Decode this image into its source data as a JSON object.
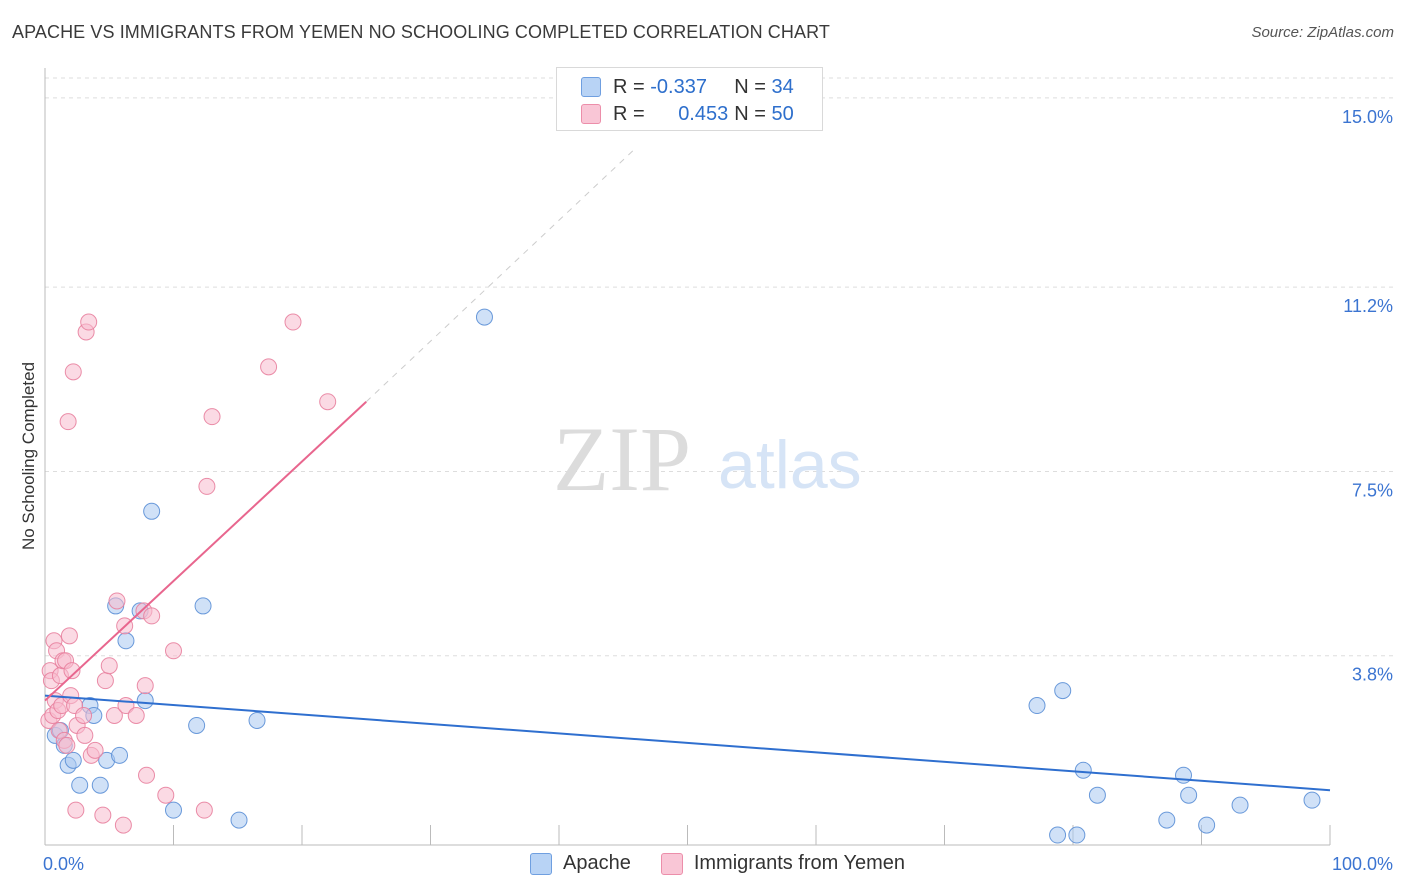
{
  "title": "APACHE VS IMMIGRANTS FROM YEMEN NO SCHOOLING COMPLETED CORRELATION CHART",
  "source": "Source: ZipAtlas.com",
  "watermark": {
    "part1": "ZIP",
    "part2": "atlas"
  },
  "legend": {
    "r_label": "R =",
    "n_label": "N =",
    "apache": {
      "r": "-0.337",
      "n": "34"
    },
    "yemen": {
      "r": "0.453",
      "n": "50"
    }
  },
  "colors": {
    "apache_fill": "#a9c8f0",
    "apache_stroke": "#5b8fd6",
    "apache_line": "#2f6fcf",
    "yemen_fill": "#f7bccd",
    "yemen_stroke": "#e8819f",
    "yemen_line": "#e8668e",
    "tick_label": "#3b74d1"
  },
  "chart_data": {
    "type": "scatter",
    "title": "APACHE VS IMMIGRANTS FROM YEMEN NO SCHOOLING COMPLETED CORRELATION CHART",
    "xlabel": "",
    "ylabel": "No Schooling Completed",
    "xlim": [
      0,
      100
    ],
    "ylim": [
      0,
      15.4
    ],
    "x_tick_labels": [
      {
        "value": 0,
        "label": "0.0%"
      },
      {
        "value": 100,
        "label": "100.0%"
      }
    ],
    "y_tick_labels": [
      {
        "value": 3.8,
        "label": "3.8%"
      },
      {
        "value": 7.5,
        "label": "7.5%"
      },
      {
        "value": 11.2,
        "label": "11.2%"
      },
      {
        "value": 15.0,
        "label": "15.0%"
      }
    ],
    "series": [
      {
        "name": "Apache",
        "points": [
          [
            0.8,
            2.2
          ],
          [
            1.2,
            2.3
          ],
          [
            1.5,
            2.0
          ],
          [
            1.8,
            1.6
          ],
          [
            2.2,
            1.7
          ],
          [
            2.7,
            1.2
          ],
          [
            3.5,
            2.8
          ],
          [
            3.8,
            2.6
          ],
          [
            4.3,
            1.2
          ],
          [
            4.8,
            1.7
          ],
          [
            5.5,
            4.8
          ],
          [
            5.8,
            1.8
          ],
          [
            6.3,
            4.1
          ],
          [
            7.4,
            4.7
          ],
          [
            7.8,
            2.9
          ],
          [
            8.3,
            6.7
          ],
          [
            10.0,
            0.7
          ],
          [
            11.8,
            2.4
          ],
          [
            12.3,
            4.8
          ],
          [
            15.1,
            0.5
          ],
          [
            16.5,
            2.5
          ],
          [
            34.2,
            10.6
          ],
          [
            77.2,
            2.8
          ],
          [
            78.8,
            0.2
          ],
          [
            79.2,
            3.1
          ],
          [
            80.3,
            0.2
          ],
          [
            80.8,
            1.5
          ],
          [
            81.9,
            1.0
          ],
          [
            87.3,
            0.5
          ],
          [
            88.6,
            1.4
          ],
          [
            89.0,
            1.0
          ],
          [
            90.4,
            0.4
          ],
          [
            93.0,
            0.8
          ],
          [
            98.6,
            0.9
          ]
        ]
      },
      {
        "name": "Immigrants from Yemen",
        "points": [
          [
            0.3,
            2.5
          ],
          [
            0.4,
            3.5
          ],
          [
            0.5,
            3.3
          ],
          [
            0.6,
            2.6
          ],
          [
            0.7,
            4.1
          ],
          [
            0.8,
            2.9
          ],
          [
            0.9,
            3.9
          ],
          [
            1.0,
            2.7
          ],
          [
            1.1,
            2.3
          ],
          [
            1.2,
            3.4
          ],
          [
            1.3,
            2.8
          ],
          [
            1.4,
            3.7
          ],
          [
            1.5,
            2.1
          ],
          [
            1.6,
            3.7
          ],
          [
            1.7,
            2.0
          ],
          [
            1.8,
            8.5
          ],
          [
            1.9,
            4.2
          ],
          [
            2.0,
            3.0
          ],
          [
            2.1,
            3.5
          ],
          [
            2.2,
            9.5
          ],
          [
            2.3,
            2.8
          ],
          [
            2.4,
            0.7
          ],
          [
            2.5,
            2.4
          ],
          [
            3.0,
            2.6
          ],
          [
            3.1,
            2.2
          ],
          [
            3.2,
            10.3
          ],
          [
            3.4,
            10.5
          ],
          [
            3.6,
            1.8
          ],
          [
            3.9,
            1.9
          ],
          [
            4.5,
            0.6
          ],
          [
            4.7,
            3.3
          ],
          [
            5.0,
            3.6
          ],
          [
            5.4,
            2.6
          ],
          [
            5.6,
            4.9
          ],
          [
            6.1,
            0.4
          ],
          [
            6.2,
            4.4
          ],
          [
            6.3,
            2.8
          ],
          [
            7.1,
            2.6
          ],
          [
            7.7,
            4.7
          ],
          [
            7.8,
            3.2
          ],
          [
            7.9,
            1.4
          ],
          [
            8.3,
            4.6
          ],
          [
            9.4,
            1.0
          ],
          [
            10.0,
            3.9
          ],
          [
            12.4,
            0.7
          ],
          [
            12.6,
            7.2
          ],
          [
            13.0,
            8.6
          ],
          [
            17.4,
            9.6
          ],
          [
            19.3,
            10.5
          ],
          [
            22.0,
            8.9
          ]
        ]
      }
    ],
    "trendlines": [
      {
        "series": "Apache",
        "start": [
          0,
          3.0
        ],
        "end": [
          100,
          1.1
        ],
        "style": "solid"
      },
      {
        "series": "Immigrants from Yemen",
        "start": [
          0,
          2.9
        ],
        "end": [
          25,
          8.9
        ],
        "style": "solid"
      },
      {
        "series": "Immigrants from Yemen",
        "start": [
          25,
          8.9
        ],
        "end": [
          46,
          14.0
        ],
        "style": "dashed"
      }
    ],
    "grid": true,
    "legend_position": "top"
  }
}
